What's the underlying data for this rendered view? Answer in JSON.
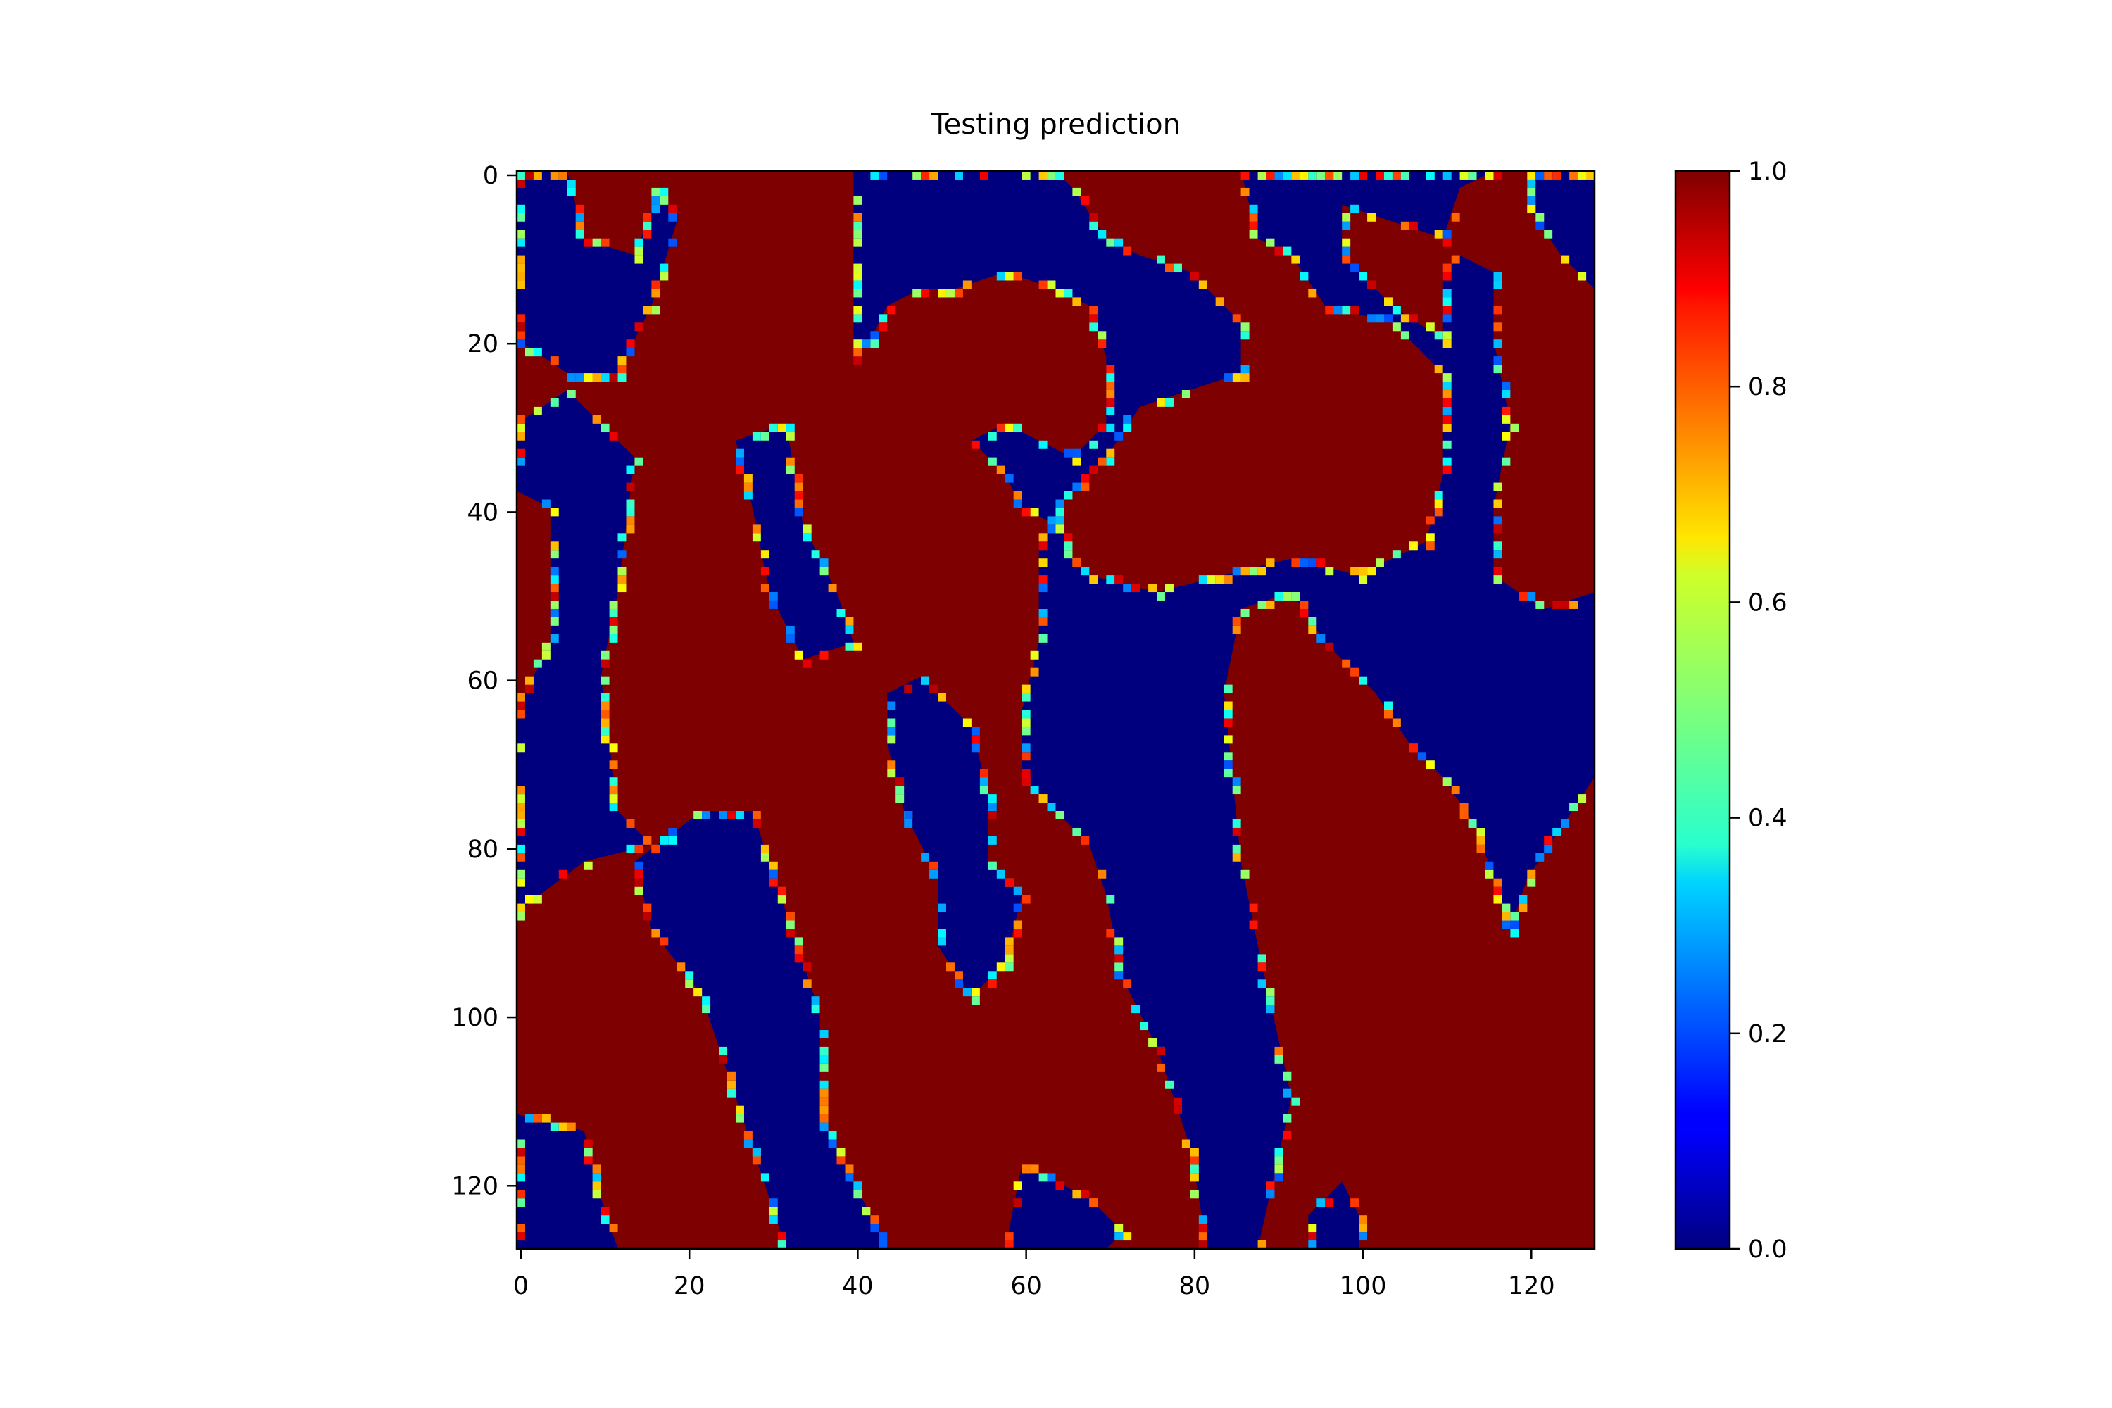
{
  "chart_data": {
    "type": "heatmap",
    "title": "Testing prediction",
    "xlabel": "",
    "ylabel": "",
    "grid_size": 128,
    "xlim": [
      0,
      128
    ],
    "ylim": [
      128,
      0
    ],
    "x_ticks": [
      0,
      20,
      40,
      60,
      80,
      100,
      120
    ],
    "y_ticks": [
      0,
      20,
      40,
      60,
      80,
      100,
      120
    ],
    "colorbar": {
      "colormap": "jet",
      "range": [
        0.0,
        1.0
      ],
      "ticks": [
        "0.0",
        "0.2",
        "0.4",
        "0.6",
        "0.8",
        "1.0"
      ]
    },
    "colors": {
      "low": "#00007f",
      "high": "#7f0000"
    },
    "low_regions": [
      {
        "points": [
          [
            0,
            0
          ],
          [
            6,
            0
          ],
          [
            8,
            8
          ],
          [
            14,
            10
          ],
          [
            17,
            2
          ],
          [
            19,
            6
          ],
          [
            16,
            16
          ],
          [
            12,
            24
          ],
          [
            6,
            24
          ],
          [
            0,
            20
          ]
        ]
      },
      {
        "points": [
          [
            0,
            30
          ],
          [
            6,
            26
          ],
          [
            14,
            34
          ],
          [
            12,
            50
          ],
          [
            10,
            60
          ],
          [
            12,
            76
          ],
          [
            16,
            80
          ],
          [
            8,
            82
          ],
          [
            0,
            88
          ],
          [
            0,
            64
          ],
          [
            4,
            56
          ],
          [
            4,
            40
          ],
          [
            0,
            38
          ]
        ]
      },
      {
        "points": [
          [
            14,
            82
          ],
          [
            22,
            76
          ],
          [
            28,
            76
          ],
          [
            32,
            88
          ],
          [
            36,
            100
          ],
          [
            36,
            112
          ],
          [
            40,
            120
          ],
          [
            44,
            128
          ],
          [
            32,
            128
          ],
          [
            28,
            116
          ],
          [
            22,
            98
          ],
          [
            16,
            90
          ]
        ]
      },
      {
        "points": [
          [
            0,
            112
          ],
          [
            8,
            114
          ],
          [
            10,
            122
          ],
          [
            12,
            128
          ],
          [
            0,
            128
          ]
        ]
      },
      {
        "points": [
          [
            26,
            32
          ],
          [
            32,
            30
          ],
          [
            34,
            42
          ],
          [
            38,
            50
          ],
          [
            40,
            56
          ],
          [
            34,
            58
          ],
          [
            30,
            50
          ],
          [
            28,
            40
          ]
        ]
      },
      {
        "points": [
          [
            40,
            0
          ],
          [
            64,
            0
          ],
          [
            66,
            2
          ],
          [
            70,
            8
          ],
          [
            74,
            10
          ],
          [
            80,
            12
          ],
          [
            86,
            18
          ],
          [
            86,
            24
          ],
          [
            80,
            26
          ],
          [
            74,
            28
          ],
          [
            70,
            34
          ],
          [
            64,
            40
          ],
          [
            66,
            46
          ],
          [
            68,
            48
          ],
          [
            76,
            50
          ],
          [
            84,
            48
          ],
          [
            92,
            46
          ],
          [
            100,
            48
          ],
          [
            108,
            44
          ],
          [
            110,
            36
          ],
          [
            110,
            24
          ],
          [
            104,
            18
          ],
          [
            96,
            16
          ],
          [
            92,
            10
          ],
          [
            88,
            8
          ],
          [
            86,
            0
          ],
          [
            116,
            0
          ],
          [
            112,
            2
          ],
          [
            110,
            8
          ],
          [
            104,
            6
          ],
          [
            98,
            4
          ],
          [
            98,
            10
          ],
          [
            104,
            16
          ],
          [
            110,
            20
          ],
          [
            110,
            12
          ],
          [
            112,
            10
          ],
          [
            116,
            12
          ],
          [
            116,
            20
          ],
          [
            118,
            30
          ],
          [
            116,
            40
          ],
          [
            116,
            48
          ],
          [
            122,
            52
          ],
          [
            128,
            50
          ],
          [
            128,
            72
          ],
          [
            124,
            78
          ],
          [
            120,
            84
          ],
          [
            118,
            90
          ],
          [
            116,
            84
          ],
          [
            114,
            78
          ],
          [
            110,
            72
          ],
          [
            106,
            68
          ],
          [
            102,
            62
          ],
          [
            96,
            56
          ],
          [
            92,
            50
          ],
          [
            86,
            52
          ],
          [
            84,
            62
          ],
          [
            86,
            82
          ],
          [
            88,
            92
          ],
          [
            92,
            110
          ],
          [
            88,
            128
          ],
          [
            82,
            128
          ],
          [
            80,
            116
          ],
          [
            76,
            104
          ],
          [
            72,
            96
          ],
          [
            70,
            86
          ],
          [
            68,
            80
          ],
          [
            64,
            76
          ],
          [
            60,
            72
          ],
          [
            60,
            64
          ],
          [
            62,
            56
          ],
          [
            62,
            48
          ],
          [
            62,
            44
          ],
          [
            64,
            42
          ],
          [
            60,
            40
          ],
          [
            58,
            36
          ],
          [
            54,
            32
          ],
          [
            58,
            30
          ],
          [
            62,
            32
          ],
          [
            66,
            34
          ],
          [
            70,
            30
          ],
          [
            70,
            22
          ],
          [
            68,
            16
          ],
          [
            64,
            14
          ],
          [
            58,
            12
          ],
          [
            52,
            14
          ],
          [
            48,
            14
          ],
          [
            44,
            16
          ],
          [
            42,
            20
          ],
          [
            40,
            22
          ],
          [
            40,
            14
          ]
        ]
      },
      {
        "points": [
          [
            44,
            62
          ],
          [
            48,
            60
          ],
          [
            54,
            66
          ],
          [
            56,
            74
          ],
          [
            56,
            82
          ],
          [
            60,
            86
          ],
          [
            58,
            94
          ],
          [
            54,
            98
          ],
          [
            50,
            92
          ],
          [
            50,
            84
          ],
          [
            46,
            76
          ],
          [
            44,
            68
          ]
        ]
      },
      {
        "points": [
          [
            120,
            0
          ],
          [
            128,
            0
          ],
          [
            128,
            14
          ],
          [
            124,
            10
          ],
          [
            120,
            4
          ]
        ]
      },
      {
        "points": [
          [
            60,
            118
          ],
          [
            68,
            122
          ],
          [
            72,
            126
          ],
          [
            70,
            128
          ],
          [
            58,
            128
          ]
        ]
      },
      {
        "points": [
          [
            94,
            124
          ],
          [
            98,
            120
          ],
          [
            100,
            124
          ],
          [
            100,
            128
          ],
          [
            94,
            128
          ]
        ]
      }
    ],
    "boundary_style": "dotted jet noise (0.2–0.9) along region edges"
  }
}
